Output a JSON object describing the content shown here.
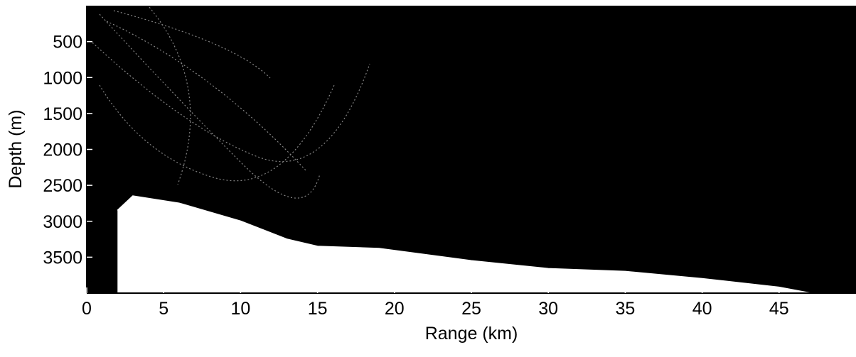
{
  "chart_data": {
    "type": "area",
    "xlabel": "Range (km)",
    "ylabel": "Depth (m)",
    "xlim": [
      0,
      50
    ],
    "xticks": [
      0,
      5,
      10,
      15,
      20,
      25,
      30,
      35,
      40,
      45
    ],
    "ylim": [
      0,
      4000
    ],
    "yticks": [
      500,
      1000,
      1500,
      2000,
      2500,
      3000,
      3500
    ],
    "y_inverted": true,
    "background": "#000000",
    "color": "#ffffff",
    "x": [
      2,
      3,
      6,
      10,
      13,
      15,
      19,
      25,
      30,
      35,
      40,
      45,
      47
    ],
    "values": [
      2850,
      2650,
      2750,
      3000,
      3250,
      3350,
      3380,
      3550,
      3660,
      3700,
      3800,
      3920,
      4000
    ]
  }
}
